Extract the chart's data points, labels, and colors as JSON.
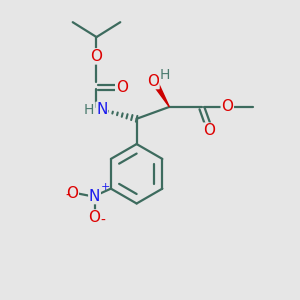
{
  "bg_color": "#e6e6e6",
  "bond_color": "#3d6b5e",
  "bond_width": 1.6,
  "atom_colors": {
    "O": "#dd0000",
    "N_blue": "#1a1aee",
    "H": "#4a7a6e",
    "C": "#3d6b5e"
  }
}
